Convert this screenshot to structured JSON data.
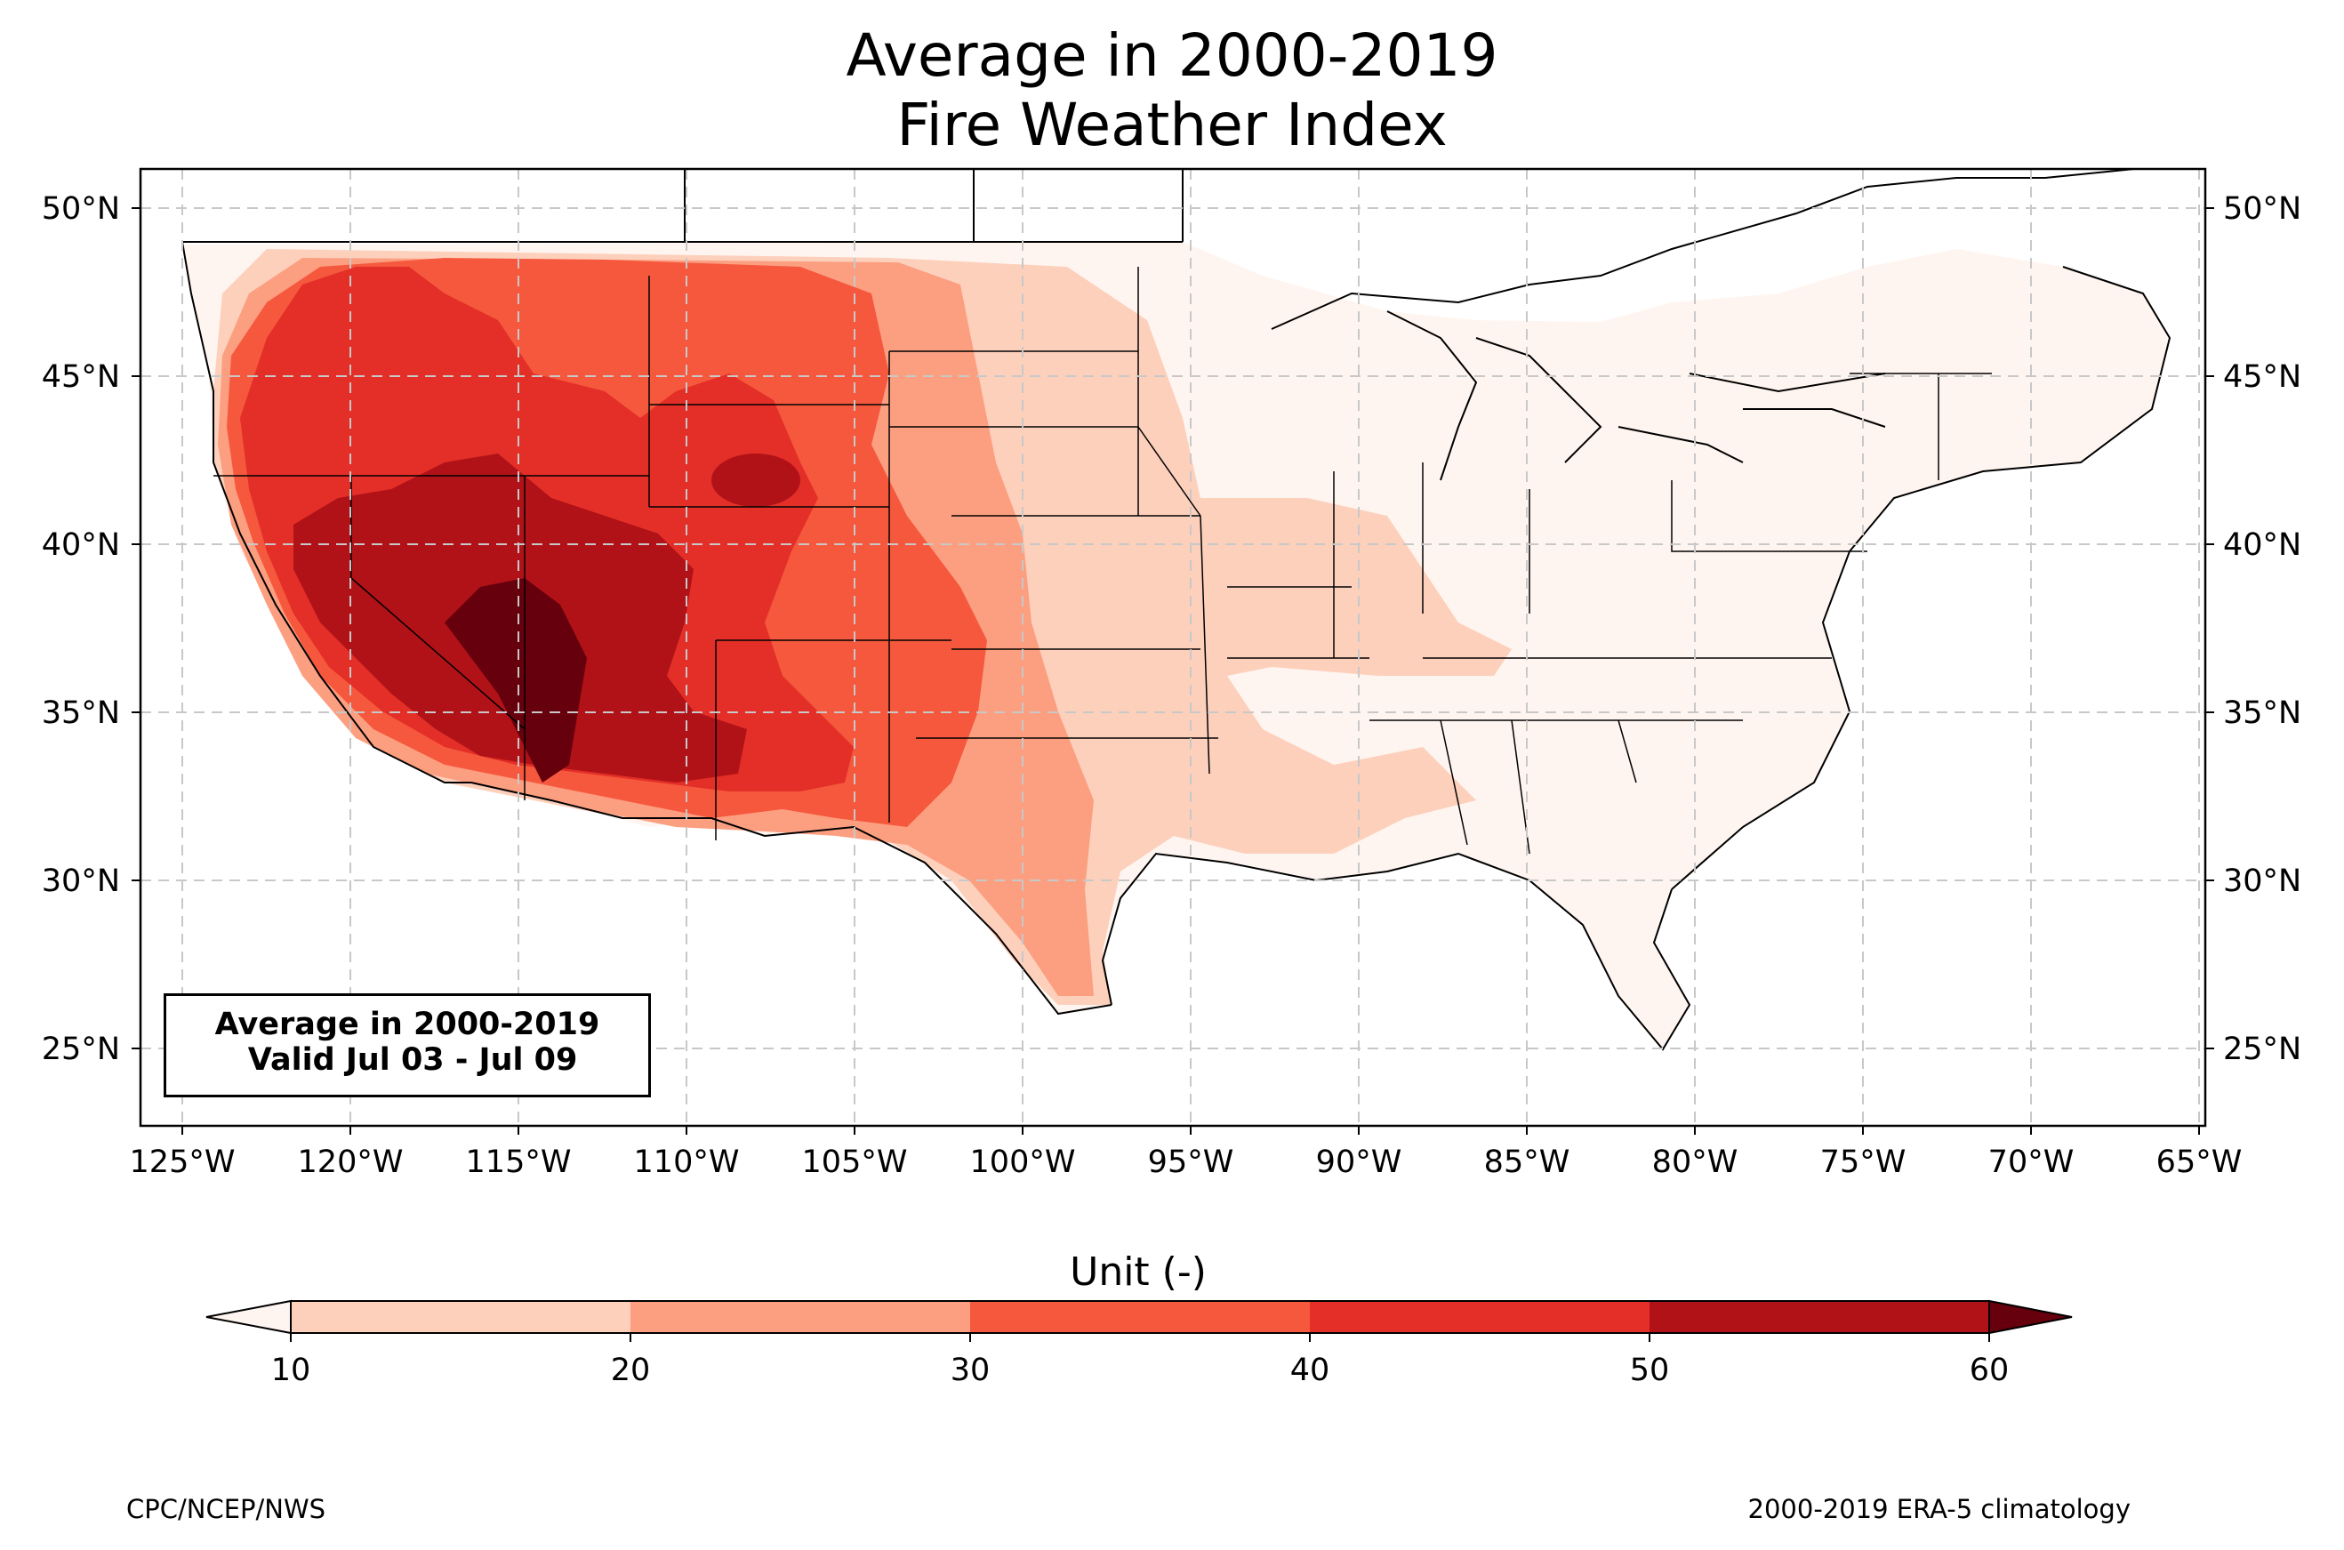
{
  "title": {
    "line1": "Average in 2000-2019",
    "line2": "Fire Weather Index"
  },
  "map": {
    "lat_ticks": [
      "50°N",
      "45°N",
      "40°N",
      "35°N",
      "30°N",
      "25°N"
    ],
    "lon_ticks": [
      "125°W",
      "120°W",
      "115°W",
      "110°W",
      "105°W",
      "100°W",
      "95°W",
      "90°W",
      "85°W",
      "80°W",
      "75°W",
      "70°W",
      "65°W"
    ],
    "info_box": {
      "line1": "Average in 2000-2019",
      "line2": " Valid Jul 03 - Jul 09"
    }
  },
  "colorbar": {
    "label": "Unit (-)",
    "ticks": [
      "10",
      "20",
      "30",
      "40",
      "50",
      "60"
    ],
    "colors": [
      "#fff5f0",
      "#fdd0bc",
      "#fc9f81",
      "#f6583e",
      "#e32f27",
      "#b11218",
      "#67000d"
    ]
  },
  "footer": {
    "left": "CPC/NCEP/NWS",
    "right": "2000-2019 ERA-5 climatology"
  }
}
